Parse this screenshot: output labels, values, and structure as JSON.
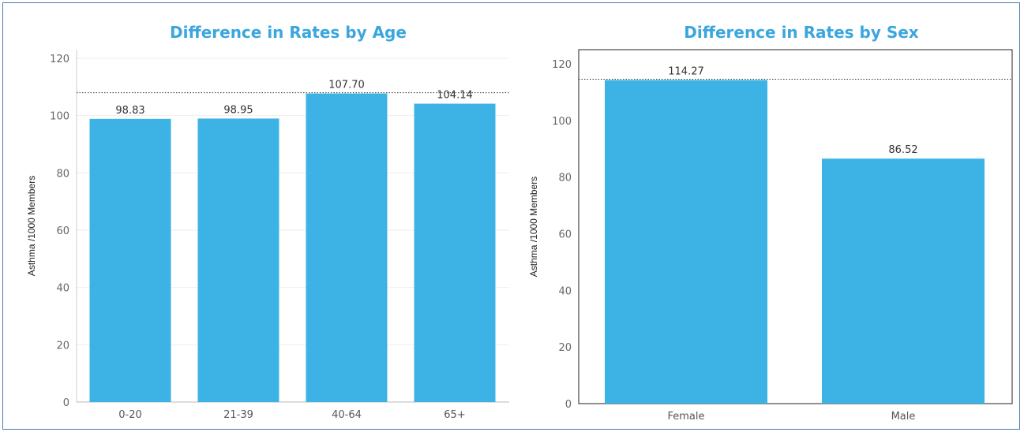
{
  "chart_data": [
    {
      "type": "bar",
      "title": "Difference in Rates by Age",
      "ylabel": "Asthma /1000 Members",
      "xlabel": "",
      "categories": [
        "0-20",
        "21-39",
        "40-64",
        "65+"
      ],
      "values": [
        98.83,
        98.95,
        107.7,
        104.14
      ],
      "data_labels": [
        "98.83",
        "98.95",
        "107.70",
        "104.14"
      ],
      "yticks": [
        0,
        20,
        40,
        60,
        80,
        100,
        120
      ],
      "ylim": [
        0,
        123
      ],
      "reference_line": 107.7,
      "grid": true,
      "color": "#3cb3e4"
    },
    {
      "type": "bar",
      "title": "Difference in Rates by Sex",
      "ylabel": "Asthma /1000 Members",
      "xlabel": "",
      "categories": [
        "Female",
        "Male"
      ],
      "values": [
        114.27,
        86.52
      ],
      "data_labels": [
        "114.27",
        "86.52"
      ],
      "yticks": [
        0,
        20,
        40,
        60,
        80,
        100,
        120
      ],
      "ylim": [
        0,
        125
      ],
      "reference_line": 114.27,
      "grid": false,
      "color": "#3cb3e4"
    }
  ]
}
